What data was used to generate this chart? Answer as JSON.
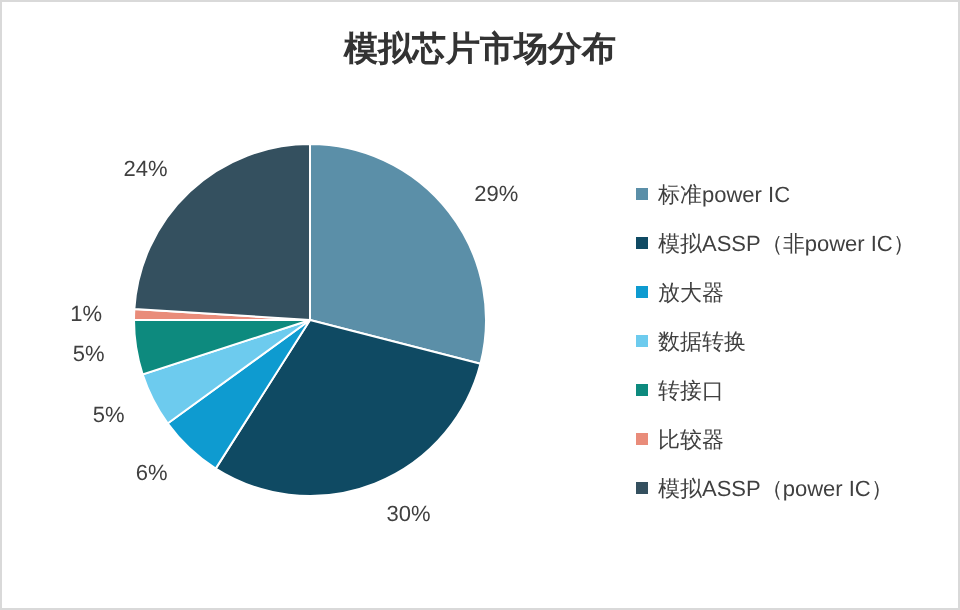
{
  "chart_data": {
    "type": "pie",
    "title": "模拟芯片市场分布",
    "categories": [
      "标准power IC",
      "模拟ASSP（非power IC）",
      "放大器",
      "数据转换",
      "转接口",
      "比较器",
      "模拟ASSP（power IC）"
    ],
    "values": [
      29,
      30,
      6,
      5,
      5,
      1,
      24
    ],
    "value_labels": [
      "29%",
      "30%",
      "6%",
      "5%",
      "5%",
      "1%",
      "24%"
    ],
    "colors": [
      "#5b8fa8",
      "#0f4a63",
      "#0e9bd0",
      "#6dcbee",
      "#0d8a7e",
      "#e98c7a",
      "#34505f"
    ],
    "legend": "right"
  }
}
